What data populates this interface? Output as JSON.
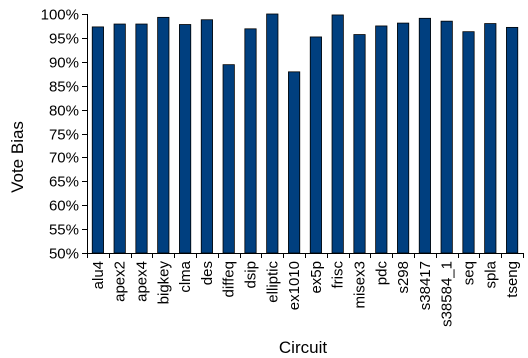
{
  "chart_data": {
    "type": "bar",
    "title": "",
    "xlabel": "Circuit",
    "ylabel": "Vote Bias",
    "ylim": [
      50,
      100
    ],
    "yticks": [
      50,
      55,
      60,
      65,
      70,
      75,
      80,
      85,
      90,
      95,
      100
    ],
    "ytick_suffix": "%",
    "bar_color": "#003f7f",
    "grid": false,
    "legend": "none",
    "categories": [
      "alu4",
      "apex2",
      "apex4",
      "bigkey",
      "clma",
      "des",
      "diffeq",
      "dsip",
      "elliptic",
      "ex1010",
      "ex5p",
      "frisc",
      "misex3",
      "pdc",
      "s298",
      "s38417",
      "s38584_1",
      "seq",
      "spla",
      "tseng"
    ],
    "values": [
      97.3,
      97.9,
      97.9,
      99.3,
      97.8,
      98.8,
      89.4,
      96.9,
      100.0,
      87.9,
      95.2,
      99.8,
      95.7,
      97.5,
      98.1,
      99.1,
      98.5,
      96.3,
      98.0,
      97.2
    ]
  }
}
